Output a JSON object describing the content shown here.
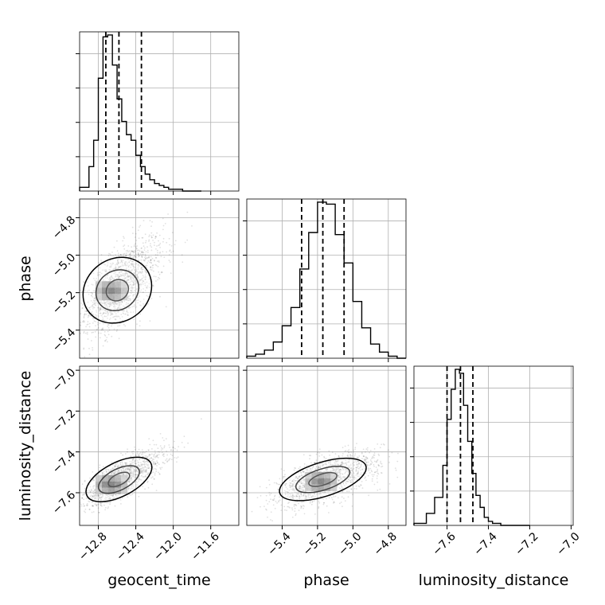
{
  "chart_data": {
    "type": "corner",
    "parameters": [
      "geocent_time",
      "phase",
      "luminosity_distance"
    ],
    "grid": true,
    "histograms": [
      {
        "parameter": "geocent_time",
        "xlim": [
          -13.0,
          -11.3
        ],
        "bin_edges": [
          -13.0,
          -12.9,
          -12.85,
          -12.8,
          -12.75,
          -12.7,
          -12.65,
          -12.6,
          -12.55,
          -12.5,
          -12.45,
          -12.4,
          -12.35,
          -12.3,
          -12.25,
          -12.2,
          -12.15,
          -12.1,
          -12.05,
          -12.0,
          -11.9,
          -11.8,
          -11.7
        ],
        "counts": [
          2,
          13,
          27,
          60,
          82,
          83,
          67,
          49,
          37,
          30,
          27,
          19,
          13,
          9,
          6,
          4,
          3,
          2,
          1,
          1,
          0,
          0
        ],
        "quantiles": [
          -12.72,
          -12.58,
          -12.34
        ]
      },
      {
        "parameter": "phase",
        "xlim": [
          -5.6,
          -4.7
        ],
        "bin_edges": [
          -5.6,
          -5.55,
          -5.5,
          -5.45,
          -5.4,
          -5.35,
          -5.3,
          -5.25,
          -5.2,
          -5.15,
          -5.1,
          -5.05,
          -5.0,
          -4.95,
          -4.9,
          -4.85,
          -4.8,
          -4.75,
          -4.7
        ],
        "counts": [
          1,
          2,
          4,
          8,
          16,
          25,
          44,
          62,
          77,
          76,
          61,
          47,
          28,
          15,
          7,
          3,
          1,
          0
        ],
        "quantiles": [
          -5.29,
          -5.17,
          -5.05
        ]
      },
      {
        "parameter": "luminosity_distance",
        "xlim": [
          -7.76,
          -6.99
        ],
        "bin_edges": [
          -7.76,
          -7.7,
          -7.66,
          -7.62,
          -7.6,
          -7.58,
          -7.56,
          -7.54,
          -7.52,
          -7.5,
          -7.48,
          -7.46,
          -7.44,
          -7.42,
          -7.4,
          -7.38,
          -7.34,
          -7.3,
          -7.25,
          -7.2
        ],
        "counts": [
          1,
          6,
          14,
          30,
          53,
          68,
          78,
          76,
          60,
          42,
          26,
          15,
          9,
          4,
          2,
          1,
          0,
          0,
          0
        ],
        "quantiles": [
          -7.6,
          -7.535,
          -7.475
        ]
      }
    ],
    "scatter_panels": [
      {
        "x": "geocent_time",
        "y": "phase",
        "xlim": [
          -13.0,
          -11.3
        ],
        "ylim": [
          -5.55,
          -4.7
        ],
        "mean": [
          -12.58,
          -5.17
        ],
        "std": [
          0.18,
          0.12
        ],
        "correlation": 0.55,
        "peak": [
          -12.66,
          -5.19
        ]
      },
      {
        "x": "geocent_time",
        "y": "luminosity_distance",
        "xlim": [
          -13.0,
          -11.3
        ],
        "ylim": [
          -7.76,
          -6.98
        ],
        "mean": [
          -12.58,
          -7.535
        ],
        "std": [
          0.18,
          0.06
        ],
        "correlation": 0.7,
        "peak": [
          -12.66,
          -7.56
        ]
      },
      {
        "x": "phase",
        "y": "luminosity_distance",
        "xlim": [
          -5.6,
          -4.7
        ],
        "ylim": [
          -7.76,
          -6.98
        ],
        "mean": [
          -5.17,
          -7.535
        ],
        "std": [
          0.12,
          0.06
        ],
        "correlation": 0.55,
        "peak": [
          -5.18,
          -7.545
        ]
      }
    ],
    "x_ticks": {
      "geocent_time": [
        "−12.8",
        "−12.4",
        "−12.0",
        "−11.6"
      ],
      "phase": [
        "−5.4",
        "−5.2",
        "−5.0",
        "−4.8"
      ],
      "luminosity_distance": [
        "−7.6",
        "−7.4",
        "−7.2",
        "−7.0"
      ]
    },
    "x_tick_values": {
      "geocent_time": [
        -12.8,
        -12.4,
        -12.0,
        -11.6
      ],
      "phase": [
        -5.4,
        -5.2,
        -5.0,
        -4.8
      ],
      "luminosity_distance": [
        -7.6,
        -7.4,
        -7.2,
        -7.0
      ]
    },
    "y_ticks": {
      "phase": [
        "−4.8",
        "−5.0",
        "−5.2",
        "−5.4"
      ],
      "luminosity_distance": [
        "−7.0",
        "−7.2",
        "−7.4",
        "−7.6"
      ]
    },
    "y_tick_values": {
      "phase": [
        -4.8,
        -5.0,
        -5.2,
        -5.4
      ],
      "luminosity_distance": [
        -7.0,
        -7.2,
        -7.4,
        -7.6
      ]
    },
    "colors": {
      "line": "#000000",
      "grid": "#b0b0b0",
      "points": "#000000"
    }
  }
}
